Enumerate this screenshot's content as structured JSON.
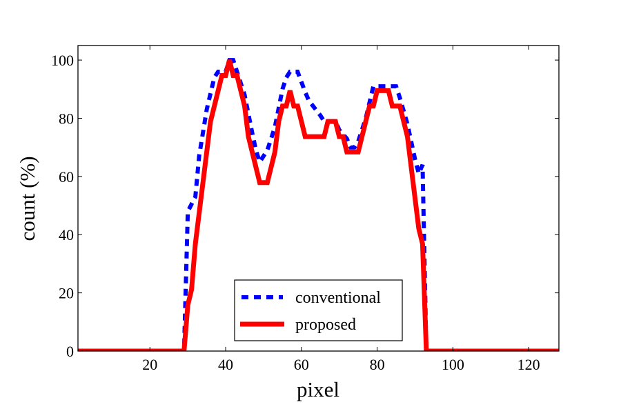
{
  "chart_data": {
    "type": "line",
    "title": "",
    "xlabel": "pixel",
    "ylabel": "count (%)",
    "xlim": [
      1,
      128
    ],
    "ylim": [
      0,
      105
    ],
    "xticks": [
      20,
      40,
      60,
      80,
      100,
      120
    ],
    "yticks": [
      0,
      20,
      40,
      60,
      80,
      100
    ],
    "grid": false,
    "legend_position": "bottom-center",
    "series": [
      {
        "name": "conventional",
        "color": "#0000ff",
        "style": "dashed",
        "points": [
          [
            1,
            0
          ],
          [
            29,
            0
          ],
          [
            30,
            48
          ],
          [
            32,
            53
          ],
          [
            33,
            67
          ],
          [
            35,
            83
          ],
          [
            37,
            94
          ],
          [
            38,
            96
          ],
          [
            40,
            96
          ],
          [
            41,
            100
          ],
          [
            42,
            100
          ],
          [
            43,
            96
          ],
          [
            45,
            88
          ],
          [
            47,
            75
          ],
          [
            48,
            69
          ],
          [
            49,
            65
          ],
          [
            51,
            69
          ],
          [
            53,
            77
          ],
          [
            55,
            90
          ],
          [
            56,
            94
          ],
          [
            57,
            96
          ],
          [
            59,
            96
          ],
          [
            61,
            89
          ],
          [
            62,
            86
          ],
          [
            65,
            81
          ],
          [
            66,
            79
          ],
          [
            69,
            79
          ],
          [
            70,
            76
          ],
          [
            72,
            73
          ],
          [
            73,
            70
          ],
          [
            74,
            70
          ],
          [
            75,
            72
          ],
          [
            77,
            80
          ],
          [
            79,
            91
          ],
          [
            85,
            91
          ],
          [
            86,
            87
          ],
          [
            88,
            78
          ],
          [
            90,
            66
          ],
          [
            91,
            61
          ],
          [
            92,
            64
          ],
          [
            93,
            0
          ],
          [
            128,
            0
          ]
        ]
      },
      {
        "name": "proposed",
        "color": "#ff0000",
        "style": "solid",
        "points": [
          [
            1,
            0
          ],
          [
            29,
            0
          ],
          [
            30,
            15.8
          ],
          [
            31,
            21.1
          ],
          [
            32,
            36.8
          ],
          [
            36,
            78.9
          ],
          [
            39,
            94.7
          ],
          [
            40,
            94.7
          ],
          [
            41,
            100
          ],
          [
            42,
            94.7
          ],
          [
            43,
            94.7
          ],
          [
            45,
            84.2
          ],
          [
            46,
            73.7
          ],
          [
            49,
            57.9
          ],
          [
            51,
            57.9
          ],
          [
            53,
            68.4
          ],
          [
            54,
            78.9
          ],
          [
            55,
            84.2
          ],
          [
            56,
            84.2
          ],
          [
            57,
            89.5
          ],
          [
            58,
            84.2
          ],
          [
            59,
            84.2
          ],
          [
            61,
            73.7
          ],
          [
            66,
            73.7
          ],
          [
            67,
            78.9
          ],
          [
            69,
            78.9
          ],
          [
            70,
            73.7
          ],
          [
            71,
            73.7
          ],
          [
            72,
            68.4
          ],
          [
            75,
            68.4
          ],
          [
            78,
            84.2
          ],
          [
            79,
            84.2
          ],
          [
            80,
            89.5
          ],
          [
            83,
            89.5
          ],
          [
            84,
            84.2
          ],
          [
            86,
            84.2
          ],
          [
            88,
            73.7
          ],
          [
            91,
            42.1
          ],
          [
            92,
            36.8
          ],
          [
            93,
            0
          ],
          [
            128,
            0
          ]
        ]
      }
    ]
  }
}
